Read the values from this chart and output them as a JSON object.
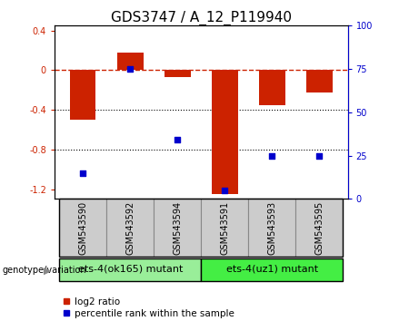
{
  "title": "GDS3747 / A_12_P119940",
  "samples": [
    "GSM543590",
    "GSM543592",
    "GSM543594",
    "GSM543591",
    "GSM543593",
    "GSM543595"
  ],
  "log2_ratio": [
    -0.5,
    0.18,
    -0.07,
    -1.25,
    -0.35,
    -0.22
  ],
  "percentile_rank": [
    15,
    75,
    34,
    5,
    25,
    25
  ],
  "bar_color": "#cc2200",
  "dot_color": "#0000cc",
  "left_ylim": [
    -1.3,
    0.45
  ],
  "right_ylim": [
    0,
    100
  ],
  "left_yticks": [
    0.4,
    0.0,
    -0.4,
    -0.8,
    -1.2
  ],
  "right_yticks": [
    100,
    75,
    50,
    25,
    0
  ],
  "hline_y": 0.0,
  "dotted_lines": [
    -0.4,
    -0.8
  ],
  "group1_label": "ets-4(ok165) mutant",
  "group2_label": "ets-4(uz1) mutant",
  "group1_indices": [
    0,
    1,
    2
  ],
  "group2_indices": [
    3,
    4,
    5
  ],
  "sample_box_color": "#cccccc",
  "group1_color": "#99ee99",
  "group2_color": "#44ee44",
  "genotype_label": "genotype/variation",
  "legend_red_label": "log2 ratio",
  "legend_blue_label": "percentile rank within the sample",
  "bar_width": 0.55,
  "title_fontsize": 11,
  "tick_fontsize": 7,
  "label_fontsize": 8,
  "legend_fontsize": 7.5
}
